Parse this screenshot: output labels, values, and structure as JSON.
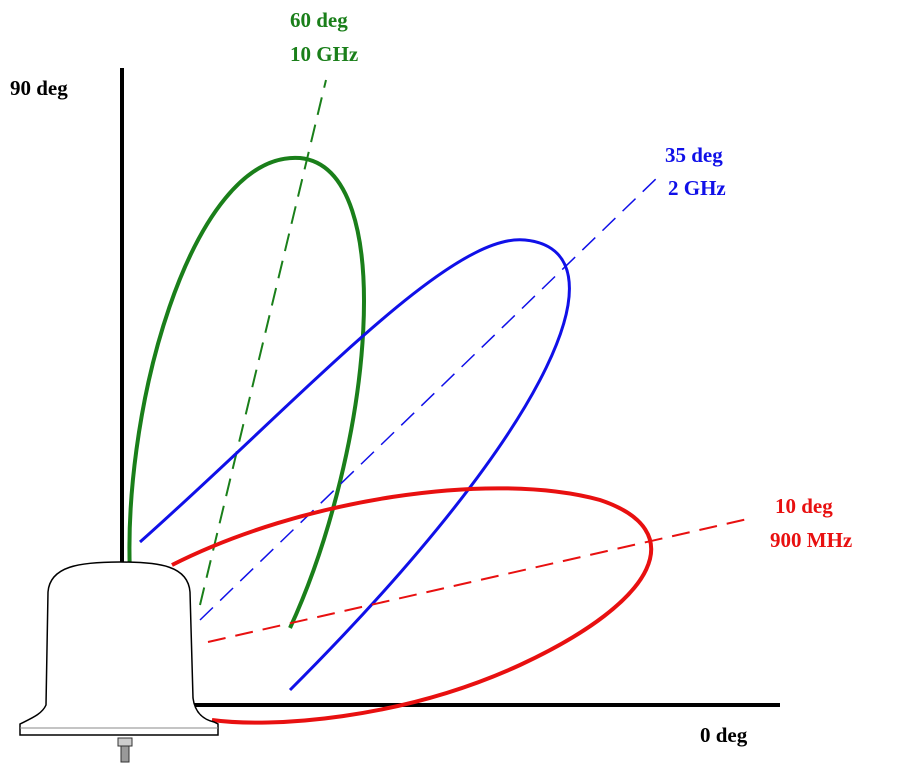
{
  "axes": {
    "y_label": "90 deg",
    "x_label": "0 deg"
  },
  "beams": [
    {
      "angle": "60 deg",
      "frequency": "10 GHz"
    },
    {
      "angle": "35 deg",
      "frequency": "2 GHz"
    },
    {
      "angle": "10 deg",
      "frequency": "900 MHz"
    }
  ]
}
